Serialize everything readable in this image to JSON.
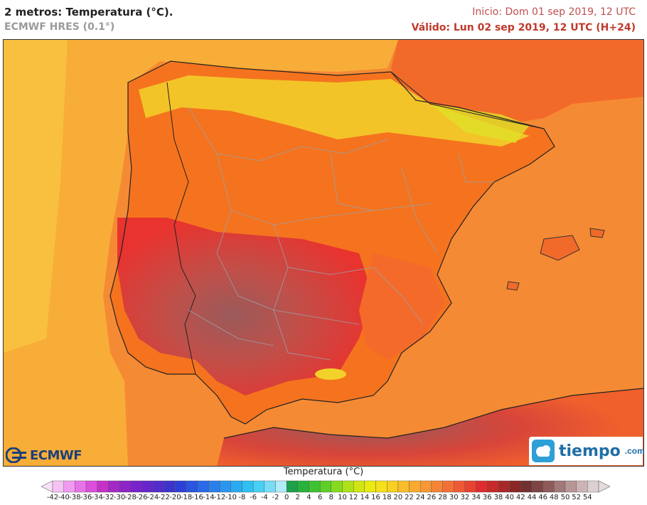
{
  "header": {
    "title": "2 metros: Temperatura (°C).",
    "model": "ECMWF HRES (0.1°)",
    "init": "Inicio: Dom 01 sep 2019, 12 UTC",
    "valid": "Válido: Lun 02 sep 2019, 12 UTC (H+24)"
  },
  "logos": {
    "ecmwf": "ECMWF",
    "tiempo": "tiempo",
    "tiempo_domain": ".com"
  },
  "legend": {
    "title": "Temperatura (°C)",
    "ticks": [
      "-42",
      "-40",
      "-38",
      "-36",
      "-34",
      "-32",
      "-30",
      "-28",
      "-26",
      "-24",
      "-22",
      "-20",
      "-18",
      "-16",
      "-14",
      "-12",
      "-10",
      "-8",
      "-6",
      "-4",
      "-2",
      "0",
      "2",
      "4",
      "6",
      "8",
      "10",
      "12",
      "14",
      "16",
      "18",
      "20",
      "22",
      "24",
      "26",
      "28",
      "30",
      "32",
      "34",
      "36",
      "38",
      "40",
      "42",
      "44",
      "46",
      "48",
      "50",
      "52",
      "54"
    ],
    "colors": [
      "#f4c3f4",
      "#f09af0",
      "#e873e8",
      "#dc4fdc",
      "#c631c6",
      "#a428c6",
      "#8e24c6",
      "#7a22cc",
      "#6626cc",
      "#522ccc",
      "#3d33cc",
      "#2d40d6",
      "#2a55e0",
      "#2a6ae6",
      "#2a80ea",
      "#2a96ee",
      "#2aaaf0",
      "#2ec0f2",
      "#48d0f4",
      "#78dcf6",
      "#b0ecfa",
      "#1ea04a",
      "#28b23c",
      "#3ec232",
      "#5ccf28",
      "#86da1e",
      "#aee218",
      "#cfe614",
      "#e8ea10",
      "#f6e01a",
      "#f8cf22",
      "#f8bd2a",
      "#f8aa30",
      "#f79834",
      "#f58536",
      "#f27036",
      "#ee5a34",
      "#e84230",
      "#e02c2e",
      "#c62a2a",
      "#a82828",
      "#8a2626",
      "#723030",
      "#7e4444",
      "#8e5a5a",
      "#a27878",
      "#b89696",
      "#ccb4b4",
      "#dcd0d0"
    ]
  },
  "colors": {
    "sea_warm": "#f79a3c",
    "sea_atlantic": "#f8ad38",
    "land_hot": "#e8332f",
    "land_very_hot": "#9a5a5a",
    "land_mild": "#f5731e",
    "mountains": "#f2d22a",
    "borders": "#9aa0a8"
  }
}
